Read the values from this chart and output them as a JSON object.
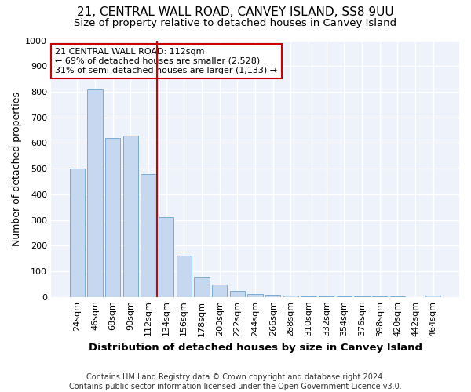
{
  "title": "21, CENTRAL WALL ROAD, CANVEY ISLAND, SS8 9UU",
  "subtitle": "Size of property relative to detached houses in Canvey Island",
  "xlabel": "Distribution of detached houses by size in Canvey Island",
  "ylabel": "Number of detached properties",
  "bar_color": "#c5d8f0",
  "bar_edge_color": "#7aadd4",
  "background_color": "#eef2fb",
  "grid_color": "#ffffff",
  "categories": [
    "24sqm",
    "46sqm",
    "68sqm",
    "90sqm",
    "112sqm",
    "134sqm",
    "156sqm",
    "178sqm",
    "200sqm",
    "222sqm",
    "244sqm",
    "266sqm",
    "288sqm",
    "310sqm",
    "332sqm",
    "354sqm",
    "376sqm",
    "398sqm",
    "420sqm",
    "442sqm",
    "464sqm"
  ],
  "values": [
    500,
    810,
    620,
    630,
    480,
    310,
    160,
    80,
    48,
    25,
    12,
    8,
    4,
    2,
    2,
    1,
    1,
    1,
    1,
    0,
    5
  ],
  "vline_x": 4.5,
  "vline_color": "#cc0000",
  "annotation_text": "21 CENTRAL WALL ROAD: 112sqm\n← 69% of detached houses are smaller (2,528)\n31% of semi-detached houses are larger (1,133) →",
  "annotation_box_color": "#ffffff",
  "annotation_box_edge": "#cc0000",
  "ylim": [
    0,
    1000
  ],
  "yticks": [
    0,
    100,
    200,
    300,
    400,
    500,
    600,
    700,
    800,
    900,
    1000
  ],
  "footnote": "Contains HM Land Registry data © Crown copyright and database right 2024.\nContains public sector information licensed under the Open Government Licence v3.0.",
  "title_fontsize": 11,
  "subtitle_fontsize": 9.5,
  "xlabel_fontsize": 9.5,
  "ylabel_fontsize": 9,
  "tick_fontsize": 8,
  "footnote_fontsize": 7
}
